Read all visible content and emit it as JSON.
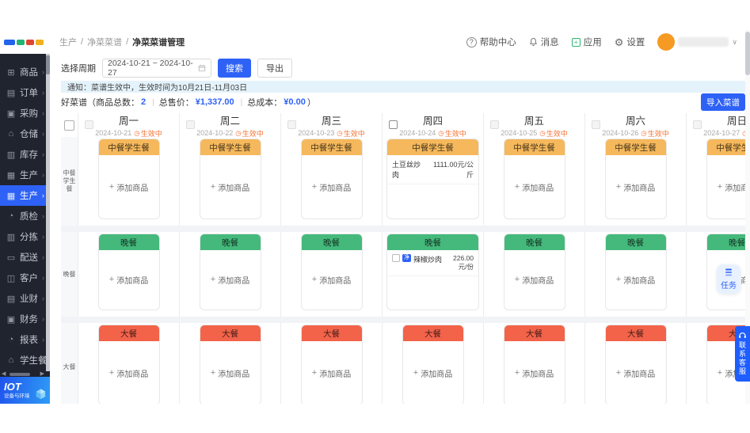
{
  "topbar": {
    "breadcrumb": [
      "生产",
      "净菜菜谱",
      "净菜菜谱管理"
    ],
    "help": "帮助中心",
    "messages": "消息",
    "apps": "应用",
    "settings": "设置"
  },
  "sidebar": {
    "items": [
      {
        "key": "goods",
        "label": "商品",
        "icon": "⊞",
        "icon_name": "grid-icon",
        "active": false
      },
      {
        "key": "orders",
        "label": "订单",
        "icon": "▤",
        "icon_name": "order-icon",
        "active": false
      },
      {
        "key": "purchase",
        "label": "采购",
        "icon": "▣",
        "icon_name": "cart-icon",
        "active": false
      },
      {
        "key": "warehouse",
        "label": "仓储",
        "icon": "⌂",
        "icon_name": "warehouse-icon",
        "active": false
      },
      {
        "key": "inventory",
        "label": "库存",
        "icon": "▥",
        "icon_name": "box-icon",
        "active": false
      },
      {
        "key": "production",
        "label": "生产",
        "icon": "▦",
        "icon_name": "factory-icon",
        "active": false
      },
      {
        "key": "production-active",
        "label": "生产",
        "icon": "▦",
        "icon_name": "factory-icon",
        "active": true
      },
      {
        "key": "quality",
        "label": "质检",
        "icon": "◔",
        "icon_name": "quality-icon",
        "active": false
      },
      {
        "key": "sorting",
        "label": "分拣",
        "icon": "▥",
        "icon_name": "sorting-icon",
        "active": false
      },
      {
        "key": "delivery",
        "label": "配送",
        "icon": "▭",
        "icon_name": "truck-icon",
        "active": false
      },
      {
        "key": "customers",
        "label": "客户",
        "icon": "◫",
        "icon_name": "customers-icon",
        "active": false
      },
      {
        "key": "biz-finance",
        "label": "业财",
        "icon": "▤",
        "icon_name": "biz-finance-icon",
        "active": false
      },
      {
        "key": "finance",
        "label": "财务",
        "icon": "▣",
        "icon_name": "finance-icon",
        "active": false
      },
      {
        "key": "reports",
        "label": "报表",
        "icon": "◔",
        "icon_name": "report-icon",
        "active": false
      },
      {
        "key": "student-meal",
        "label": "学生餐",
        "icon": "⌂",
        "icon_name": "meal-icon",
        "active": false
      }
    ],
    "iot_title": "IOT",
    "iot_subtitle": "设备与环境"
  },
  "toolbar": {
    "period_label": "选择周期",
    "period_value": "2024-10-21 ~ 2024-10-27",
    "search_label": "搜索",
    "export_label": "导出"
  },
  "notice_text": "通知：菜谱生效中，生效时间为10月21日-11月03日",
  "summary": {
    "name_label": "好菜谱",
    "count_label": "（商品总数：",
    "count": "2",
    "divider": "|",
    "price_label": "总售价：",
    "price": "¥1,337.00",
    "cost_label": "总成本：",
    "cost": "¥0.00",
    "close": "）",
    "import_label": "导入菜谱"
  },
  "grid": {
    "status_label": "生效中",
    "add_label": "添加商品",
    "days": [
      {
        "name": "周一",
        "date": "2024-10-21"
      },
      {
        "name": "周二",
        "date": "2024-10-22"
      },
      {
        "name": "周三",
        "date": "2024-10-23"
      },
      {
        "name": "周四",
        "date": "2024-10-24",
        "checked_style": true
      },
      {
        "name": "周五",
        "date": "2024-10-25"
      },
      {
        "name": "周六",
        "date": "2024-10-26"
      },
      {
        "name": "周日",
        "date": "2024-10-27"
      }
    ],
    "meals": [
      {
        "name": "中餐学生餐",
        "color": "#f5b85c",
        "items_by_day": {
          "3": [
            {
              "name": "土豆丝炒肉",
              "price": "1111.00元/公斤"
            }
          ]
        }
      },
      {
        "name": "晚餐",
        "color": "#45b97c",
        "items_by_day": {
          "3": [
            {
              "name": "辣椒炒肉",
              "price": "226.00元/份",
              "badge": "净",
              "checkbox": true
            }
          ]
        }
      },
      {
        "name": "大餐",
        "color": "#f2634a",
        "items_by_day": {}
      }
    ]
  },
  "floating": {
    "task": "任务",
    "service": "联系客服"
  },
  "colors": {
    "accent": "#2e62f6",
    "status_orange": "#f77234",
    "lunch_header": "#f5b85c",
    "dinner_header": "#45b97c",
    "feast_header": "#f2634a"
  }
}
